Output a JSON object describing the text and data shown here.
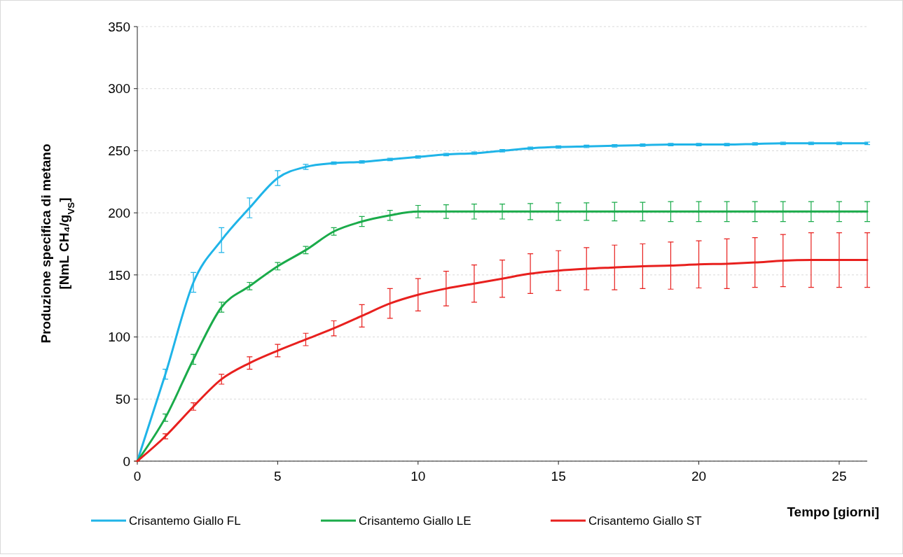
{
  "chart_data": {
    "type": "line",
    "xlabel": "Tempo [giorni]",
    "ylabel": "Produzione specifica di metano\n[NmL CH₄/g$_{VS}$]",
    "x": [
      0,
      1,
      2,
      3,
      4,
      5,
      6,
      7,
      8,
      9,
      10,
      11,
      12,
      13,
      14,
      15,
      16,
      17,
      18,
      19,
      20,
      21,
      22,
      23,
      24,
      25,
      26
    ],
    "xlim": [
      0,
      26
    ],
    "xticks": [
      0,
      5,
      10,
      15,
      20,
      25
    ],
    "ylim": [
      0,
      350
    ],
    "yticks": [
      0,
      50,
      100,
      150,
      200,
      250,
      300,
      350
    ],
    "grid": "y",
    "legend": "bottom",
    "marker": "none",
    "line_style": "solid",
    "series": [
      {
        "name": "Crisantemo  Giallo FL",
        "color": "#1fb4e8",
        "values": [
          0,
          70,
          144,
          178,
          204,
          228,
          237,
          240,
          241,
          243,
          245,
          247,
          248,
          250,
          252,
          253,
          253.5,
          254,
          254.5,
          255,
          255,
          255,
          255.5,
          256,
          256,
          256,
          256
        ],
        "errors": [
          0,
          4,
          8,
          10,
          8,
          6,
          2,
          1,
          1,
          1,
          1,
          1,
          1,
          1,
          1,
          1,
          1,
          1,
          1,
          1,
          1,
          1,
          1,
          1,
          1,
          1,
          1
        ]
      },
      {
        "name": "Crisantemo  Giallo LE",
        "color": "#1aab4a",
        "values": [
          0,
          35,
          82,
          124,
          141,
          157,
          170,
          185,
          193,
          198,
          201,
          201,
          201,
          201,
          201,
          201,
          201,
          201,
          201,
          201,
          201,
          201,
          201,
          201,
          201,
          201,
          201
        ],
        "errors": [
          0,
          3,
          4,
          4,
          3,
          3,
          3,
          3,
          4,
          4,
          5,
          5.5,
          6,
          6,
          6.5,
          7,
          7,
          7.5,
          7.5,
          8,
          8,
          8,
          8,
          8,
          8,
          8,
          8
        ]
      },
      {
        "name": "Crisantemo  Giallo ST",
        "color": "#e8201e",
        "values": [
          0,
          20,
          44,
          66,
          79,
          89,
          98,
          107,
          117,
          127,
          134,
          139,
          143,
          147,
          151,
          153.5,
          155,
          156,
          157,
          157.5,
          158.5,
          159,
          160,
          161.5,
          162,
          162,
          162
        ],
        "errors": [
          0,
          2,
          3,
          4,
          5,
          5,
          5,
          6,
          9,
          12,
          13,
          14,
          15,
          15,
          16,
          16,
          17,
          18,
          18,
          19,
          19,
          20,
          20,
          21,
          22,
          22,
          22
        ]
      }
    ]
  }
}
